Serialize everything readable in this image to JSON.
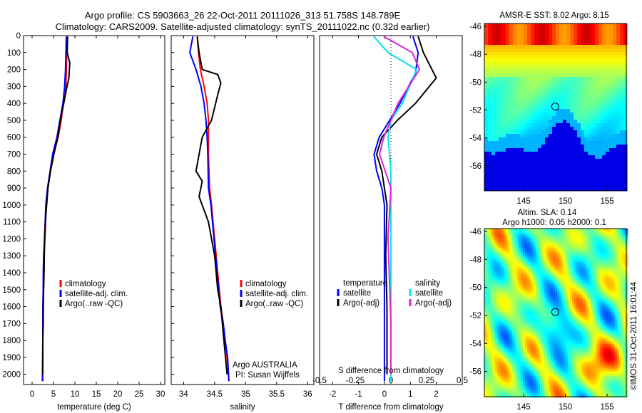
{
  "header": {
    "line1": "Argo profile: CS 5903663_26 22-Oct-2011 20111026_313 51.758S 148.789E",
    "line2": "Climatology: CARS2009. Satellite-adjusted climatology: synTS_20111022.nc (0.32d earlier)"
  },
  "colors": {
    "climatology": "#ff0000",
    "satellite": "#0000ff",
    "argo": "#000000",
    "sal_satellite": "#00e5ee",
    "sal_argo": "#dd22dd"
  },
  "chart_data": [
    {
      "type": "line",
      "xlabel": "temperature (deg C)",
      "ylabel": "",
      "xlim": [
        -2,
        31
      ],
      "ylim": [
        2060,
        0
      ],
      "xticks": [
        "0",
        "5",
        "10",
        "15",
        "20",
        "25",
        "30"
      ],
      "yticks": [
        "0",
        "100",
        "200",
        "300",
        "400",
        "500",
        "600",
        "700",
        "800",
        "900",
        "1000",
        "1100",
        "1200",
        "1300",
        "1400",
        "1500",
        "1600",
        "1700",
        "1800",
        "1900",
        "2000"
      ],
      "legend": [
        "climatology",
        "satellite-adj. clim.",
        "Argo(..raw -QC)"
      ],
      "series": [
        {
          "name": "climatology",
          "x": [
            8.2,
            8.1,
            8.0,
            7.9,
            7.3,
            6.8,
            6.1,
            5.0,
            4.3,
            3.7,
            3.3,
            3.0,
            2.8,
            2.7,
            2.6,
            2.6,
            2.5,
            2.5,
            2.5
          ],
          "y": [
            5,
            100,
            200,
            300,
            400,
            500,
            600,
            700,
            800,
            900,
            1000,
            1200,
            1300,
            1400,
            1500,
            1600,
            1700,
            1800,
            2040
          ]
        },
        {
          "name": "satellite-adj. clim.",
          "x": [
            8.0,
            7.9,
            7.8,
            7.6,
            7.2,
            6.5,
            5.8,
            4.8,
            4.2,
            3.6,
            3.2,
            2.9,
            2.7,
            2.6,
            2.6,
            2.5,
            2.5,
            2.5,
            2.4
          ],
          "y": [
            5,
            100,
            200,
            300,
            400,
            500,
            600,
            700,
            800,
            900,
            1000,
            1200,
            1300,
            1400,
            1500,
            1600,
            1700,
            1800,
            2040
          ]
        },
        {
          "name": "Argo(..raw -QC)",
          "x": [
            8.3,
            8.2,
            8.8,
            8.6,
            8.0,
            7.4,
            6.6,
            6.0,
            5.1,
            4.3,
            3.7,
            3.4,
            3.1,
            2.9,
            2.8,
            2.7,
            2.6,
            2.6,
            2.5,
            2.5
          ],
          "y": [
            5,
            100,
            160,
            250,
            320,
            400,
            500,
            600,
            700,
            800,
            900,
            1000,
            1100,
            1200,
            1400,
            1500,
            1600,
            1700,
            1800,
            2000
          ]
        }
      ]
    },
    {
      "type": "line",
      "xlabel": "salinity",
      "xlim": [
        33.8,
        36.1
      ],
      "ylim": [
        2060,
        0
      ],
      "xticks": [
        "34",
        "34.5",
        "35",
        "35.5",
        "36"
      ],
      "legend": [
        "climatology",
        "satellite-adj. clim.",
        "Argo(..raw -QC)"
      ],
      "annotation": [
        "Argo AUSTRALIA",
        "PI: Susan Wijffels"
      ],
      "series": [
        {
          "name": "climatology",
          "x": [
            34.22,
            34.24,
            34.27,
            34.33,
            34.38,
            34.4,
            34.4,
            34.4,
            34.42,
            34.45,
            34.5,
            34.55,
            34.6,
            34.64,
            34.67,
            34.7,
            34.73
          ],
          "y": [
            5,
            100,
            200,
            300,
            400,
            500,
            600,
            700,
            900,
            1000,
            1200,
            1400,
            1600,
            1700,
            1800,
            1900,
            2040
          ]
        },
        {
          "name": "satellite-adj. clim.",
          "x": [
            34.15,
            34.1,
            34.2,
            34.28,
            34.33,
            34.36,
            34.38,
            34.39,
            34.4,
            34.44,
            34.49,
            34.54,
            34.59,
            34.64,
            34.67,
            34.71,
            34.73
          ],
          "y": [
            5,
            100,
            200,
            300,
            400,
            500,
            600,
            700,
            900,
            1000,
            1200,
            1400,
            1600,
            1700,
            1800,
            1900,
            2040
          ]
        },
        {
          "name": "Argo(..raw -QC)",
          "x": [
            34.22,
            34.25,
            34.3,
            34.55,
            34.6,
            34.55,
            34.45,
            34.3,
            34.25,
            34.2,
            34.3,
            34.25,
            34.4,
            34.5,
            34.55,
            34.6,
            34.65,
            34.7
          ],
          "y": [
            5,
            100,
            200,
            230,
            280,
            350,
            500,
            600,
            700,
            800,
            860,
            950,
            1100,
            1300,
            1500,
            1600,
            1800,
            2000
          ]
        }
      ]
    },
    {
      "type": "line",
      "xlabel": "T difference from climatology",
      "xlim": [
        -2.5,
        3.0
      ],
      "ylim": [
        2060,
        0
      ],
      "xticks": [
        "-2",
        "-1",
        "0",
        "1",
        "2"
      ],
      "top_xlabel": "S difference from climatology",
      "top_xticks": [
        "-0.5",
        "-0.25",
        "0",
        "0.25",
        "0.5"
      ],
      "legend": [
        "temperature",
        "satellite",
        "Argo(-adj)",
        "salinity",
        "satellite",
        "Argo(-adj)"
      ],
      "series": [
        {
          "name": "T satellite",
          "x": [
            1.1,
            1.3,
            1.2,
            0.6,
            0.2,
            -0.2,
            -0.4,
            -0.3,
            -0.1,
            0.0,
            0.0,
            0.0,
            0.0
          ],
          "y": [
            5,
            100,
            220,
            400,
            500,
            600,
            700,
            800,
            900,
            1000,
            1300,
            1600,
            2040
          ]
        },
        {
          "name": "T Argo(-adj)",
          "x": [
            1.3,
            1.5,
            2.0,
            1.2,
            0.5,
            -0.1,
            -0.3,
            -0.1,
            0.0,
            0.1,
            0.05,
            0.1,
            0.1
          ],
          "y": [
            5,
            100,
            250,
            400,
            500,
            600,
            700,
            800,
            900,
            1000,
            1300,
            1600,
            2000
          ]
        },
        {
          "name": "S satellite",
          "x": [
            -0.12,
            -0.02,
            0.18,
            0.08,
            0.0,
            -0.02,
            0.0,
            0.0,
            0.0
          ],
          "y": [
            5,
            100,
            200,
            400,
            500,
            600,
            800,
            1200,
            2040
          ]
        },
        {
          "name": "S Argo(-adj)",
          "x": [
            -0.05,
            0.15,
            0.2,
            0.05,
            -0.05,
            -0.08,
            0.0,
            -0.02,
            0.0,
            0.0
          ],
          "y": [
            5,
            100,
            200,
            400,
            600,
            700,
            900,
            1200,
            1700,
            2000
          ]
        }
      ]
    },
    {
      "type": "heatmap",
      "title": "AMSR-E SST: 8.02 Argo: 8.15",
      "xlim": [
        140.3,
        157.3
      ],
      "ylim": [
        -57.8,
        -45.8
      ],
      "xticks": [
        "145",
        "150",
        "155"
      ],
      "yticks": [
        "-46",
        "-48",
        "-50",
        "-52",
        "-54",
        "-56"
      ],
      "marker": [
        148.789,
        -51.758
      ]
    },
    {
      "type": "heatmap",
      "title": "Altim. SLA: 0.14",
      "subtitle": "Argo h1000: 0.05 h2000: 0.1",
      "xlim": [
        140.3,
        157.3
      ],
      "ylim": [
        -57.8,
        -45.8
      ],
      "xticks": [
        "145",
        "150",
        "155"
      ],
      "yticks": [
        "-46",
        "-48",
        "-50",
        "-52",
        "-54",
        "-56"
      ],
      "marker": [
        148.789,
        -51.758
      ]
    }
  ],
  "credit": "©IMOS 31-Oct-2011 16:01:44"
}
